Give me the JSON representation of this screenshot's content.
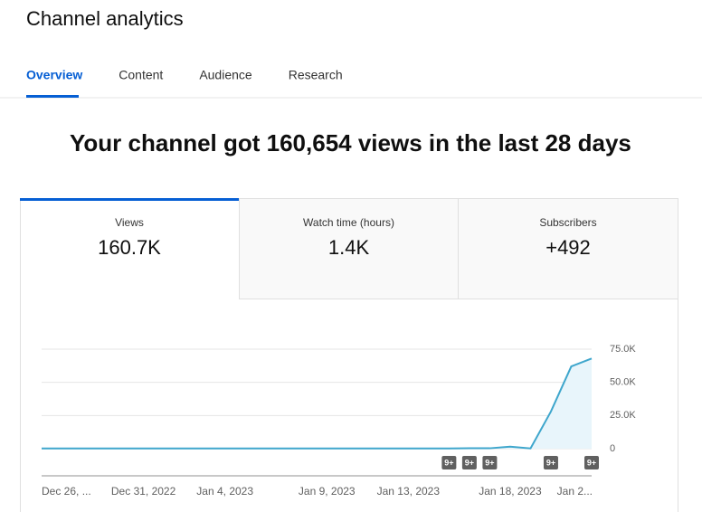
{
  "header": {
    "title": "Channel analytics"
  },
  "tabs": [
    "Overview",
    "Content",
    "Audience",
    "Research"
  ],
  "headline": "Your channel got 160,654 views in the last 28 days",
  "metrics": [
    {
      "label": "Views",
      "value": "160.7K"
    },
    {
      "label": "Watch time (hours)",
      "value": "1.4K"
    },
    {
      "label": "Subscribers",
      "value": "+492"
    }
  ],
  "chart_data": {
    "type": "line",
    "categories": [
      "Dec 26, ...",
      null,
      null,
      null,
      null,
      "Dec 31, 2022",
      null,
      null,
      null,
      "Jan 4, 2023",
      null,
      null,
      null,
      null,
      "Jan 9, 2023",
      null,
      null,
      null,
      "Jan 13, 2023",
      null,
      null,
      null,
      null,
      "Jan 18, 2023",
      null,
      null,
      null,
      "Jan 2..."
    ],
    "values": [
      150,
      150,
      150,
      150,
      150,
      150,
      150,
      150,
      150,
      150,
      150,
      150,
      150,
      150,
      150,
      150,
      150,
      150,
      150,
      150,
      150,
      300,
      300,
      1500,
      200,
      28000,
      62000,
      68000
    ],
    "color": "#3ea6cc",
    "ylim": [
      0,
      75000
    ],
    "yticks": [
      0,
      {
        "value": 25000,
        "label": "25.0K"
      },
      {
        "value": 50000,
        "label": "50.0K"
      },
      {
        "value": 75000,
        "label": "75.0K"
      }
    ],
    "grid": true,
    "annotations": [
      {
        "index": 20,
        "label": "9+"
      },
      {
        "index": 21,
        "label": "9+"
      },
      {
        "index": 22,
        "label": "9+"
      },
      {
        "index": 25,
        "label": "9+"
      },
      {
        "index": 27,
        "label": "9+"
      }
    ]
  }
}
